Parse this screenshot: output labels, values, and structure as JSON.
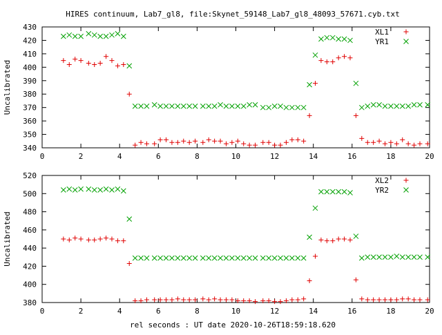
{
  "title": "HIRES continuum, Lab7_gl8, file:Skynet_59148_Lab7_gl8_48093_57671.cyb.txt",
  "xlabel": "rel seconds : UT date 2020-10-26T18:59:18.620",
  "colors": {
    "L": "#e00000",
    "R": "#00a000",
    "axis": "#000000"
  },
  "chart_data": [
    {
      "type": "scatter",
      "ylabel": "Uncalibrated",
      "xlim": [
        0,
        20
      ],
      "ylim": [
        340,
        430
      ],
      "xticks": [
        0,
        2,
        4,
        6,
        8,
        10,
        12,
        14,
        16,
        18,
        20
      ],
      "yticks": [
        340,
        350,
        360,
        370,
        380,
        390,
        400,
        410,
        420,
        430
      ],
      "legend_position": "top-right",
      "series": [
        {
          "name": "XL1",
          "marker": "plus",
          "color": "#e00000",
          "points": [
            [
              1.1,
              405
            ],
            [
              1.4,
              402
            ],
            [
              1.7,
              406
            ],
            [
              2.0,
              405
            ],
            [
              2.4,
              403
            ],
            [
              2.7,
              402
            ],
            [
              3.0,
              403
            ],
            [
              3.3,
              408
            ],
            [
              3.6,
              405
            ],
            [
              3.9,
              401
            ],
            [
              4.2,
              402
            ],
            [
              4.5,
              380
            ],
            [
              4.8,
              342
            ],
            [
              5.1,
              344
            ],
            [
              5.4,
              343
            ],
            [
              5.8,
              343
            ],
            [
              6.1,
              346
            ],
            [
              6.4,
              346
            ],
            [
              6.7,
              344
            ],
            [
              7.0,
              344
            ],
            [
              7.3,
              345
            ],
            [
              7.6,
              344
            ],
            [
              7.9,
              345
            ],
            [
              8.3,
              344
            ],
            [
              8.6,
              346
            ],
            [
              8.9,
              345
            ],
            [
              9.2,
              345
            ],
            [
              9.5,
              343
            ],
            [
              9.8,
              344
            ],
            [
              10.1,
              345
            ],
            [
              10.4,
              343
            ],
            [
              10.7,
              342
            ],
            [
              11.0,
              342
            ],
            [
              11.4,
              344
            ],
            [
              11.7,
              344
            ],
            [
              12.0,
              342
            ],
            [
              12.3,
              342
            ],
            [
              12.6,
              344
            ],
            [
              12.9,
              346
            ],
            [
              13.2,
              346
            ],
            [
              13.5,
              345
            ],
            [
              13.8,
              364
            ],
            [
              14.1,
              388
            ],
            [
              14.4,
              405
            ],
            [
              14.7,
              404
            ],
            [
              15.0,
              404
            ],
            [
              15.3,
              407
            ],
            [
              15.6,
              408
            ],
            [
              15.9,
              407
            ],
            [
              16.2,
              364
            ],
            [
              16.5,
              347
            ],
            [
              16.8,
              344
            ],
            [
              17.1,
              344
            ],
            [
              17.4,
              345
            ],
            [
              17.7,
              343
            ],
            [
              18.0,
              344
            ],
            [
              18.3,
              343
            ],
            [
              18.6,
              346
            ],
            [
              18.9,
              343
            ],
            [
              19.2,
              342
            ],
            [
              19.5,
              343
            ],
            [
              19.9,
              343
            ]
          ]
        },
        {
          "name": "YR1",
          "marker": "cross",
          "color": "#00a000",
          "points": [
            [
              1.1,
              423
            ],
            [
              1.4,
              424
            ],
            [
              1.7,
              423
            ],
            [
              2.0,
              423
            ],
            [
              2.4,
              425
            ],
            [
              2.7,
              424
            ],
            [
              3.0,
              423
            ],
            [
              3.3,
              423
            ],
            [
              3.6,
              424
            ],
            [
              3.9,
              425
            ],
            [
              4.2,
              423
            ],
            [
              4.5,
              401
            ],
            [
              4.8,
              371
            ],
            [
              5.1,
              371
            ],
            [
              5.4,
              371
            ],
            [
              5.8,
              372
            ],
            [
              6.1,
              371
            ],
            [
              6.4,
              371
            ],
            [
              6.7,
              371
            ],
            [
              7.0,
              371
            ],
            [
              7.3,
              371
            ],
            [
              7.6,
              371
            ],
            [
              7.9,
              371
            ],
            [
              8.3,
              371
            ],
            [
              8.6,
              371
            ],
            [
              8.9,
              371
            ],
            [
              9.2,
              372
            ],
            [
              9.5,
              371
            ],
            [
              9.8,
              371
            ],
            [
              10.1,
              371
            ],
            [
              10.4,
              371
            ],
            [
              10.7,
              372
            ],
            [
              11.0,
              372
            ],
            [
              11.4,
              370
            ],
            [
              11.7,
              370
            ],
            [
              12.0,
              371
            ],
            [
              12.3,
              371
            ],
            [
              12.6,
              370
            ],
            [
              12.9,
              370
            ],
            [
              13.2,
              370
            ],
            [
              13.5,
              370
            ],
            [
              13.8,
              387
            ],
            [
              14.1,
              409
            ],
            [
              14.4,
              421
            ],
            [
              14.7,
              422
            ],
            [
              15.0,
              422
            ],
            [
              15.3,
              421
            ],
            [
              15.6,
              421
            ],
            [
              15.9,
              420
            ],
            [
              16.2,
              388
            ],
            [
              16.5,
              370
            ],
            [
              16.8,
              371
            ],
            [
              17.1,
              372
            ],
            [
              17.4,
              372
            ],
            [
              17.7,
              371
            ],
            [
              18.0,
              371
            ],
            [
              18.3,
              371
            ],
            [
              18.6,
              371
            ],
            [
              18.9,
              371
            ],
            [
              19.2,
              372
            ],
            [
              19.5,
              372
            ],
            [
              19.9,
              372
            ]
          ]
        }
      ]
    },
    {
      "type": "scatter",
      "ylabel": "Uncalibrated",
      "xlim": [
        0,
        20
      ],
      "ylim": [
        380,
        520
      ],
      "xticks": [
        0,
        2,
        4,
        6,
        8,
        10,
        12,
        14,
        16,
        18,
        20
      ],
      "yticks": [
        380,
        400,
        420,
        440,
        460,
        480,
        500,
        520
      ],
      "legend_position": "top-right",
      "series": [
        {
          "name": "XL2",
          "marker": "plus",
          "color": "#e00000",
          "points": [
            [
              1.1,
              450
            ],
            [
              1.4,
              449
            ],
            [
              1.7,
              451
            ],
            [
              2.0,
              450
            ],
            [
              2.4,
              449
            ],
            [
              2.7,
              449
            ],
            [
              3.0,
              450
            ],
            [
              3.3,
              451
            ],
            [
              3.6,
              450
            ],
            [
              3.9,
              448
            ],
            [
              4.2,
              448
            ],
            [
              4.5,
              423
            ],
            [
              4.8,
              382
            ],
            [
              5.1,
              382
            ],
            [
              5.4,
              383
            ],
            [
              5.8,
              383
            ],
            [
              6.1,
              383
            ],
            [
              6.4,
              383
            ],
            [
              6.7,
              383
            ],
            [
              7.0,
              384
            ],
            [
              7.3,
              383
            ],
            [
              7.6,
              383
            ],
            [
              7.9,
              383
            ],
            [
              8.3,
              384
            ],
            [
              8.6,
              383
            ],
            [
              8.9,
              384
            ],
            [
              9.2,
              383
            ],
            [
              9.5,
              383
            ],
            [
              9.8,
              383
            ],
            [
              10.1,
              382
            ],
            [
              10.4,
              382
            ],
            [
              10.7,
              382
            ],
            [
              11.0,
              381
            ],
            [
              11.4,
              382
            ],
            [
              11.7,
              382
            ],
            [
              12.0,
              381
            ],
            [
              12.3,
              381
            ],
            [
              12.6,
              382
            ],
            [
              12.9,
              383
            ],
            [
              13.2,
              383
            ],
            [
              13.5,
              384
            ],
            [
              13.8,
              404
            ],
            [
              14.1,
              431
            ],
            [
              14.4,
              449
            ],
            [
              14.7,
              448
            ],
            [
              15.0,
              448
            ],
            [
              15.3,
              450
            ],
            [
              15.6,
              450
            ],
            [
              15.9,
              449
            ],
            [
              16.2,
              405
            ],
            [
              16.5,
              384
            ],
            [
              16.8,
              383
            ],
            [
              17.1,
              383
            ],
            [
              17.4,
              383
            ],
            [
              17.7,
              383
            ],
            [
              18.0,
              383
            ],
            [
              18.3,
              383
            ],
            [
              18.6,
              384
            ],
            [
              18.9,
              384
            ],
            [
              19.2,
              383
            ],
            [
              19.5,
              383
            ],
            [
              19.9,
              383
            ]
          ]
        },
        {
          "name": "YR2",
          "marker": "cross",
          "color": "#00a000",
          "points": [
            [
              1.1,
              504
            ],
            [
              1.4,
              505
            ],
            [
              1.7,
              504
            ],
            [
              2.0,
              505
            ],
            [
              2.4,
              505
            ],
            [
              2.7,
              504
            ],
            [
              3.0,
              504
            ],
            [
              3.3,
              505
            ],
            [
              3.6,
              504
            ],
            [
              3.9,
              505
            ],
            [
              4.2,
              503
            ],
            [
              4.5,
              472
            ],
            [
              4.8,
              429
            ],
            [
              5.1,
              429
            ],
            [
              5.4,
              429
            ],
            [
              5.8,
              429
            ],
            [
              6.1,
              429
            ],
            [
              6.4,
              429
            ],
            [
              6.7,
              429
            ],
            [
              7.0,
              429
            ],
            [
              7.3,
              429
            ],
            [
              7.6,
              429
            ],
            [
              7.9,
              429
            ],
            [
              8.3,
              429
            ],
            [
              8.6,
              429
            ],
            [
              8.9,
              429
            ],
            [
              9.2,
              429
            ],
            [
              9.5,
              429
            ],
            [
              9.8,
              429
            ],
            [
              10.1,
              429
            ],
            [
              10.4,
              429
            ],
            [
              10.7,
              429
            ],
            [
              11.0,
              429
            ],
            [
              11.4,
              429
            ],
            [
              11.7,
              429
            ],
            [
              12.0,
              429
            ],
            [
              12.3,
              429
            ],
            [
              12.6,
              429
            ],
            [
              12.9,
              429
            ],
            [
              13.2,
              429
            ],
            [
              13.5,
              429
            ],
            [
              13.8,
              452
            ],
            [
              14.1,
              484
            ],
            [
              14.4,
              502
            ],
            [
              14.7,
              502
            ],
            [
              15.0,
              502
            ],
            [
              15.3,
              502
            ],
            [
              15.6,
              502
            ],
            [
              15.9,
              501
            ],
            [
              16.2,
              453
            ],
            [
              16.5,
              429
            ],
            [
              16.8,
              430
            ],
            [
              17.1,
              430
            ],
            [
              17.4,
              430
            ],
            [
              17.7,
              430
            ],
            [
              18.0,
              430
            ],
            [
              18.3,
              431
            ],
            [
              18.6,
              430
            ],
            [
              18.9,
              430
            ],
            [
              19.2,
              430
            ],
            [
              19.5,
              430
            ],
            [
              19.9,
              430
            ]
          ]
        }
      ]
    }
  ]
}
